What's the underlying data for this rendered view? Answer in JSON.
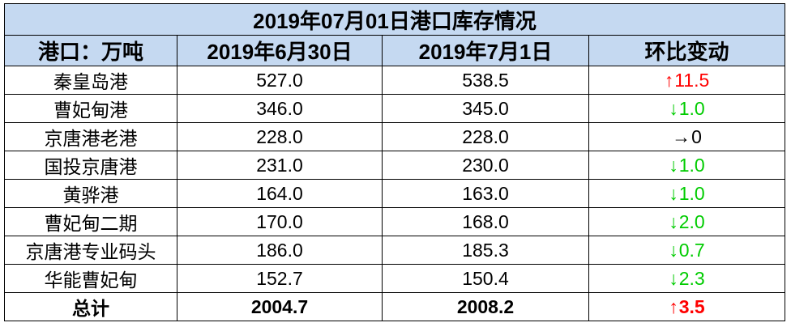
{
  "title": "2019年07月01日港口库存情况",
  "headers": {
    "port": "港口：万吨",
    "date1": "2019年6月30日",
    "date2": "2019年7月1日",
    "change": "环比变动"
  },
  "rows": [
    {
      "port": "秦皇岛港",
      "v1": "527.0",
      "v2": "538.5",
      "arrow": "↑",
      "change": "11.5",
      "dir": "up"
    },
    {
      "port": "曹妃甸港",
      "v1": "346.0",
      "v2": "345.0",
      "arrow": "↓",
      "change": "1.0",
      "dir": "down"
    },
    {
      "port": "京唐港老港",
      "v1": "228.0",
      "v2": "228.0",
      "arrow": "→",
      "change": "0",
      "dir": "flat"
    },
    {
      "port": "国投京唐港",
      "v1": "231.0",
      "v2": "230.0",
      "arrow": "↓",
      "change": "1.0",
      "dir": "down"
    },
    {
      "port": "黄骅港",
      "v1": "164.0",
      "v2": "163.0",
      "arrow": "↓",
      "change": "1.0",
      "dir": "down"
    },
    {
      "port": "曹妃甸二期",
      "v1": "170.0",
      "v2": "168.0",
      "arrow": "↓",
      "change": "2.0",
      "dir": "down"
    },
    {
      "port": "京唐港专业码头",
      "v1": "186.0",
      "v2": "185.3",
      "arrow": "↓",
      "change": "0.7",
      "dir": "down"
    },
    {
      "port": "华能曹妃甸",
      "v1": "152.7",
      "v2": "150.4",
      "arrow": "↓",
      "change": "2.3",
      "dir": "down"
    }
  ],
  "total": {
    "port": "总计",
    "v1": "2004.7",
    "v2": "2008.2",
    "arrow": "↑",
    "change": "3.5",
    "dir": "up"
  },
  "colors": {
    "header_bg": "#c5d9f1",
    "up": "#ff0000",
    "down": "#00cc00",
    "flat": "#000000"
  }
}
